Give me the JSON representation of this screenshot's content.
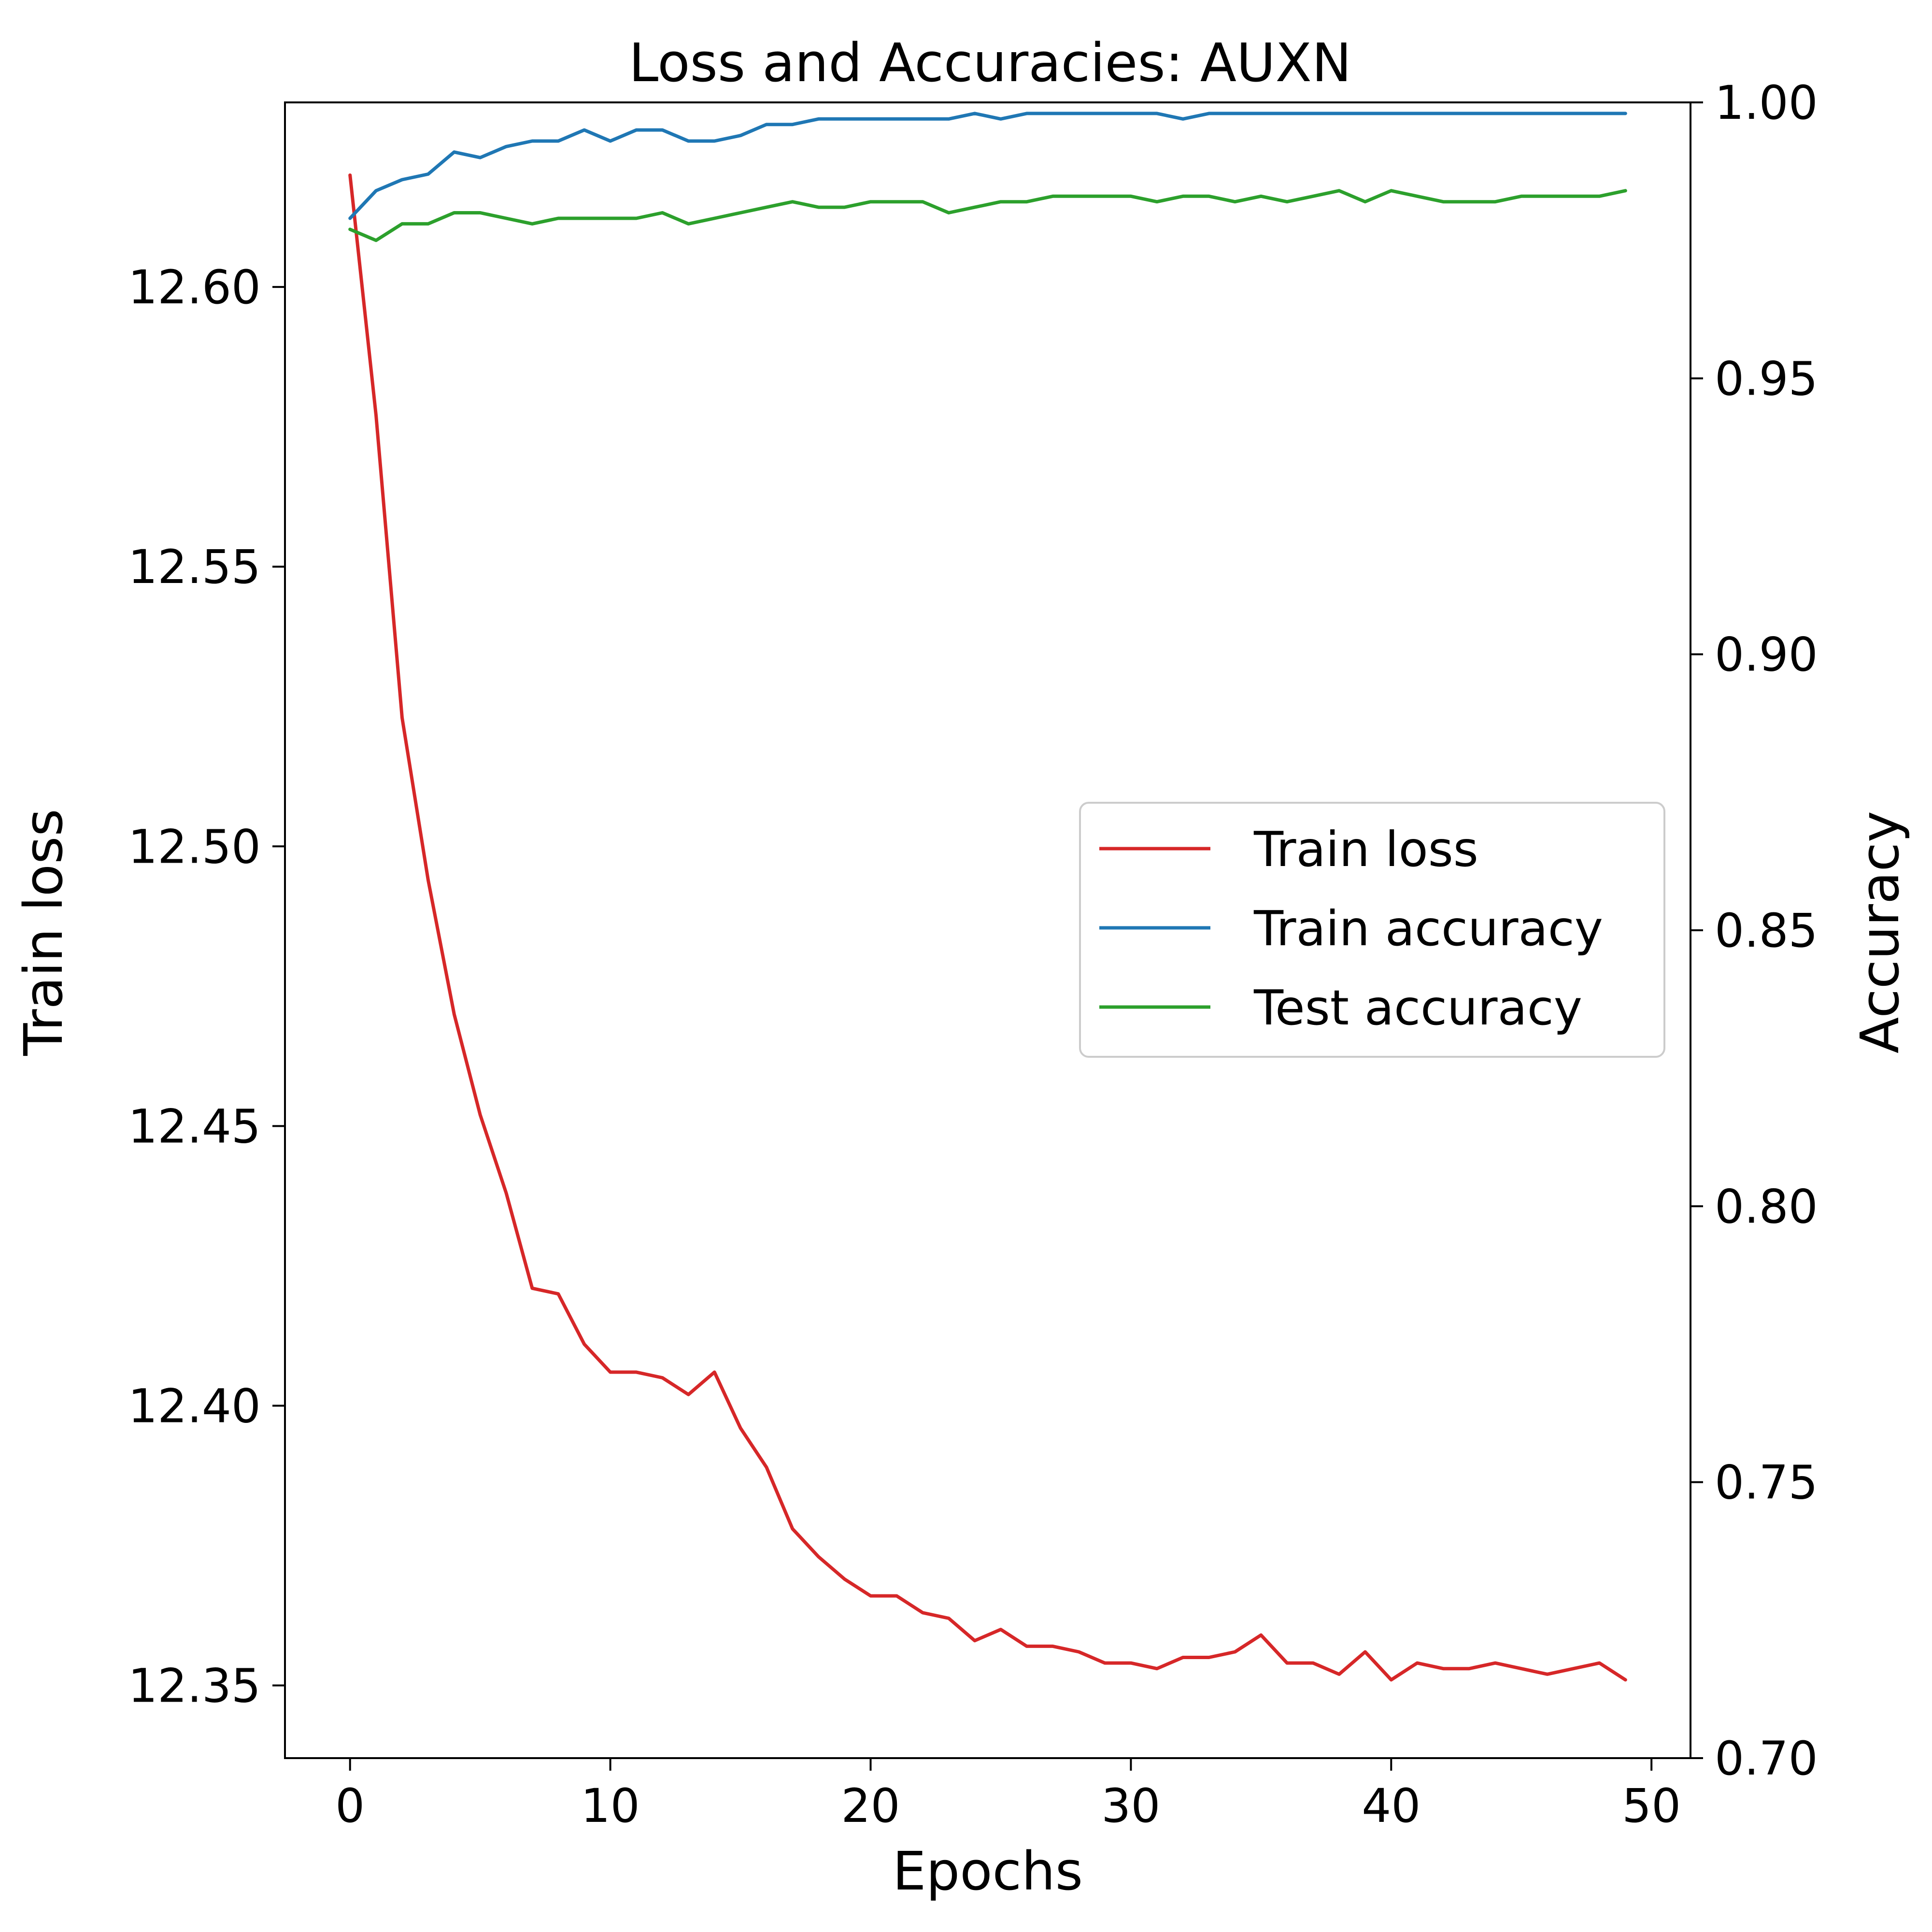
{
  "chart_data": {
    "type": "line",
    "title": "Loss and Accuracies: AUXN",
    "xlabel": "Epochs",
    "ylabel": "Train loss",
    "y2label": "Accuracy",
    "xlim": [
      -2.5,
      51.5
    ],
    "ylim": [
      12.337,
      12.633
    ],
    "y2lim": [
      0.7,
      1.0
    ],
    "xticks": [
      0,
      10,
      20,
      30,
      40,
      50
    ],
    "xtick_labels": [
      "0",
      "10",
      "20",
      "30",
      "40",
      "50"
    ],
    "yticks": [
      12.35,
      12.4,
      12.45,
      12.5,
      12.55,
      12.6
    ],
    "ytick_labels": [
      "12.35",
      "12.40",
      "12.45",
      "12.50",
      "12.55",
      "12.60"
    ],
    "y2ticks": [
      0.7,
      0.75,
      0.8,
      0.85,
      0.9,
      0.95,
      1.0
    ],
    "y2tick_labels": [
      "0.70",
      "0.75",
      "0.80",
      "0.85",
      "0.90",
      "0.95",
      "1.00"
    ],
    "grid": false,
    "legend_position": "center-right",
    "x": [
      0,
      1,
      2,
      3,
      4,
      5,
      6,
      7,
      8,
      9,
      10,
      11,
      12,
      13,
      14,
      15,
      16,
      17,
      18,
      19,
      20,
      21,
      22,
      23,
      24,
      25,
      26,
      27,
      28,
      29,
      30,
      31,
      32,
      33,
      34,
      35,
      36,
      37,
      38,
      39,
      40,
      41,
      42,
      43,
      44,
      45,
      46,
      47,
      48,
      49
    ],
    "series": [
      {
        "name": "Train loss",
        "axis": "left",
        "color": "#d62728",
        "values": [
          12.62,
          12.577,
          12.523,
          12.494,
          12.47,
          12.452,
          12.438,
          12.421,
          12.42,
          12.411,
          12.406,
          12.406,
          12.405,
          12.402,
          12.406,
          12.396,
          12.389,
          12.378,
          12.373,
          12.369,
          12.366,
          12.366,
          12.363,
          12.362,
          12.358,
          12.36,
          12.357,
          12.357,
          12.356,
          12.354,
          12.354,
          12.353,
          12.355,
          12.355,
          12.356,
          12.359,
          12.354,
          12.354,
          12.352,
          12.356,
          12.351,
          12.354,
          12.353,
          12.353,
          12.354,
          12.353,
          12.352,
          12.353,
          12.354,
          12.351
        ]
      },
      {
        "name": "Train accuracy",
        "axis": "right",
        "color": "#1f77b4",
        "values": [
          0.979,
          0.984,
          0.986,
          0.987,
          0.991,
          0.99,
          0.992,
          0.993,
          0.993,
          0.995,
          0.993,
          0.995,
          0.995,
          0.993,
          0.993,
          0.994,
          0.996,
          0.996,
          0.997,
          0.997,
          0.997,
          0.997,
          0.997,
          0.997,
          0.998,
          0.997,
          0.998,
          0.998,
          0.998,
          0.998,
          0.998,
          0.998,
          0.997,
          0.998,
          0.998,
          0.998,
          0.998,
          0.998,
          0.998,
          0.998,
          0.998,
          0.998,
          0.998,
          0.998,
          0.998,
          0.998,
          0.998,
          0.998,
          0.998,
          0.998
        ]
      },
      {
        "name": "Test accuracy",
        "axis": "right",
        "color": "#2ca02c",
        "values": [
          0.977,
          0.975,
          0.978,
          0.978,
          0.98,
          0.98,
          0.979,
          0.978,
          0.979,
          0.979,
          0.979,
          0.979,
          0.98,
          0.978,
          0.979,
          0.98,
          0.981,
          0.982,
          0.981,
          0.981,
          0.982,
          0.982,
          0.982,
          0.98,
          0.981,
          0.982,
          0.982,
          0.983,
          0.983,
          0.983,
          0.983,
          0.982,
          0.983,
          0.983,
          0.982,
          0.983,
          0.982,
          0.983,
          0.984,
          0.982,
          0.984,
          0.983,
          0.982,
          0.982,
          0.982,
          0.983,
          0.983,
          0.983,
          0.983,
          0.984
        ]
      }
    ]
  }
}
